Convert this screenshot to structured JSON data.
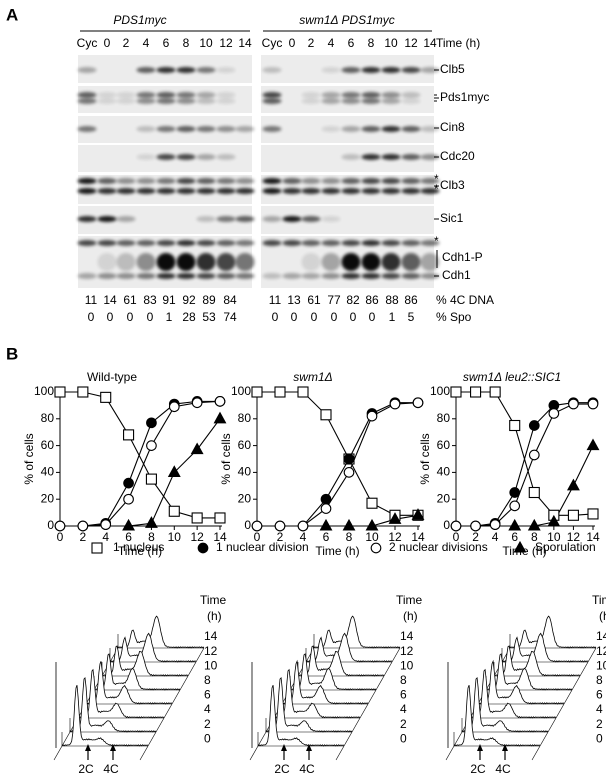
{
  "panel_a": {
    "label": "A",
    "strains": [
      "PDS1myc",
      "swm1Δ PDS1myc"
    ],
    "lanes": [
      "Cyc",
      0,
      2,
      4,
      6,
      8,
      10,
      12,
      14
    ],
    "time_label": "Time (h)",
    "proteins": [
      "Clb5",
      "Pds1myc",
      "Cin8",
      "Cdc20",
      "Clb3",
      "Sic1",
      "Cdh1-P",
      "Cdh1"
    ],
    "asterisk": "*",
    "rows": [
      {
        "label": "% 4C DNA",
        "left": [
          11,
          14,
          61,
          83,
          91,
          92,
          89,
          84
        ],
        "right": [
          11,
          13,
          61,
          77,
          82,
          86,
          88,
          86
        ]
      },
      {
        "label": "% Spo",
        "left": [
          0,
          0,
          0,
          0,
          1,
          28,
          53,
          74
        ],
        "right": [
          0,
          0,
          0,
          0,
          0,
          0,
          1,
          5
        ]
      }
    ]
  },
  "panel_b": {
    "label": "B"
  },
  "chart_data": [
    {
      "type": "line",
      "title": "Wild-type",
      "xlabel": "Time (h)",
      "ylabel": "% of cells",
      "x": [
        0,
        2,
        4,
        6,
        8,
        10,
        12,
        14
      ],
      "xlim": [
        0,
        14
      ],
      "ylim": [
        0,
        100
      ],
      "xticks": [
        0,
        2,
        4,
        6,
        8,
        10,
        12,
        14
      ],
      "yticks": [
        0,
        20,
        40,
        60,
        80,
        100
      ],
      "series": [
        {
          "name": "1 nucleus",
          "color": "#000000",
          "marker": "square-open",
          "values": [
            100,
            100,
            96,
            68,
            35,
            11,
            6,
            6
          ]
        },
        {
          "name": "1 nuclear division",
          "color": "#000000",
          "marker": "circle-filled",
          "values": [
            0,
            0,
            2,
            32,
            77,
            91,
            93,
            93
          ]
        },
        {
          "name": "2 nuclear divisions",
          "color": "#000000",
          "marker": "circle-open",
          "values": [
            0,
            0,
            1,
            20,
            60,
            89,
            92,
            93
          ]
        },
        {
          "name": "Sporulation",
          "color": "#000000",
          "marker": "triangle-filled",
          "values": [
            null,
            null,
            null,
            0,
            2,
            40,
            57,
            80
          ]
        }
      ]
    },
    {
      "type": "line",
      "title": "swm1Δ",
      "xlabel": "Time (h)",
      "ylabel": "% of cells",
      "x": [
        0,
        2,
        4,
        6,
        8,
        10,
        12,
        14
      ],
      "xlim": [
        0,
        14
      ],
      "ylim": [
        0,
        100
      ],
      "xticks": [
        0,
        2,
        4,
        6,
        8,
        10,
        12,
        14
      ],
      "yticks": [
        0,
        20,
        40,
        60,
        80,
        100
      ],
      "series": [
        {
          "name": "1 nucleus",
          "color": "#000000",
          "marker": "square-open",
          "values": [
            100,
            100,
            100,
            83,
            50,
            17,
            8,
            8
          ]
        },
        {
          "name": "1 nuclear division",
          "color": "#000000",
          "marker": "circle-filled",
          "values": [
            0,
            0,
            0,
            20,
            50,
            84,
            92,
            92
          ]
        },
        {
          "name": "2 nuclear divisions",
          "color": "#000000",
          "marker": "circle-open",
          "values": [
            0,
            0,
            0,
            13,
            40,
            82,
            91,
            92
          ]
        },
        {
          "name": "Sporulation",
          "color": "#000000",
          "marker": "triangle-filled",
          "values": [
            null,
            null,
            null,
            0,
            0,
            0,
            5,
            8
          ]
        }
      ]
    },
    {
      "type": "line",
      "title": "swm1Δ leu2::SIC1",
      "xlabel": "Time (h)",
      "ylabel": "% of cells",
      "x": [
        0,
        2,
        4,
        6,
        8,
        10,
        12,
        14
      ],
      "xlim": [
        0,
        14
      ],
      "ylim": [
        0,
        100
      ],
      "xticks": [
        0,
        2,
        4,
        6,
        8,
        10,
        12,
        14
      ],
      "yticks": [
        0,
        20,
        40,
        60,
        80,
        100
      ],
      "series": [
        {
          "name": "1 nucleus",
          "color": "#000000",
          "marker": "square-open",
          "values": [
            100,
            100,
            100,
            75,
            25,
            8,
            8,
            9
          ]
        },
        {
          "name": "1 nuclear division",
          "color": "#000000",
          "marker": "circle-filled",
          "values": [
            0,
            0,
            2,
            25,
            75,
            90,
            92,
            92
          ]
        },
        {
          "name": "2 nuclear divisions",
          "color": "#000000",
          "marker": "circle-open",
          "values": [
            0,
            0,
            1,
            15,
            53,
            84,
            91,
            91
          ]
        },
        {
          "name": "Sporulation",
          "color": "#000000",
          "marker": "triangle-filled",
          "values": [
            null,
            null,
            null,
            0,
            0,
            3,
            30,
            60
          ]
        }
      ]
    }
  ],
  "flow": {
    "time_label": [
      "Time",
      "(h)"
    ],
    "times": [
      14,
      12,
      10,
      8,
      6,
      4,
      2,
      0
    ],
    "peaks": [
      "2C",
      "4C"
    ]
  }
}
